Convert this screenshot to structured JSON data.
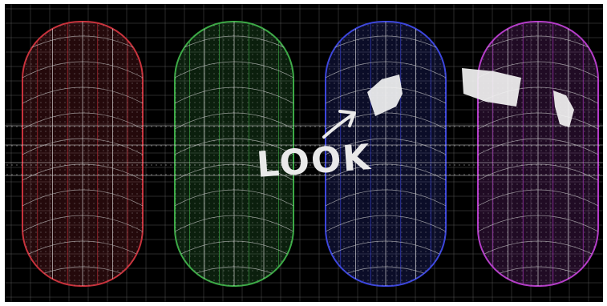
{
  "annotation": {
    "text": "LOOK",
    "color": "#e9e9e9"
  },
  "scene": {
    "background": "#000000",
    "capsules": [
      {
        "name": "red-capsule",
        "color": "#c8323c"
      },
      {
        "name": "green-capsule",
        "color": "#3caa46"
      },
      {
        "name": "blue-capsule",
        "color": "#3c46dc"
      },
      {
        "name": "purple-capsule",
        "color": "#b43cc8"
      }
    ],
    "grid_color": "#d8d8d8",
    "highlight_color": "#f2f2f2"
  }
}
